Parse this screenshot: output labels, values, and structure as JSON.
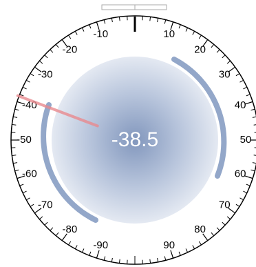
{
  "gauge": {
    "value": -38.5,
    "min": -100,
    "max": 100,
    "tick_step": 2,
    "major_step": 10,
    "labels": [
      -90,
      -80,
      -70,
      -60,
      -50,
      -40,
      -30,
      -20,
      -10,
      10,
      20,
      30,
      40,
      50,
      60,
      70,
      80,
      90
    ]
  }
}
